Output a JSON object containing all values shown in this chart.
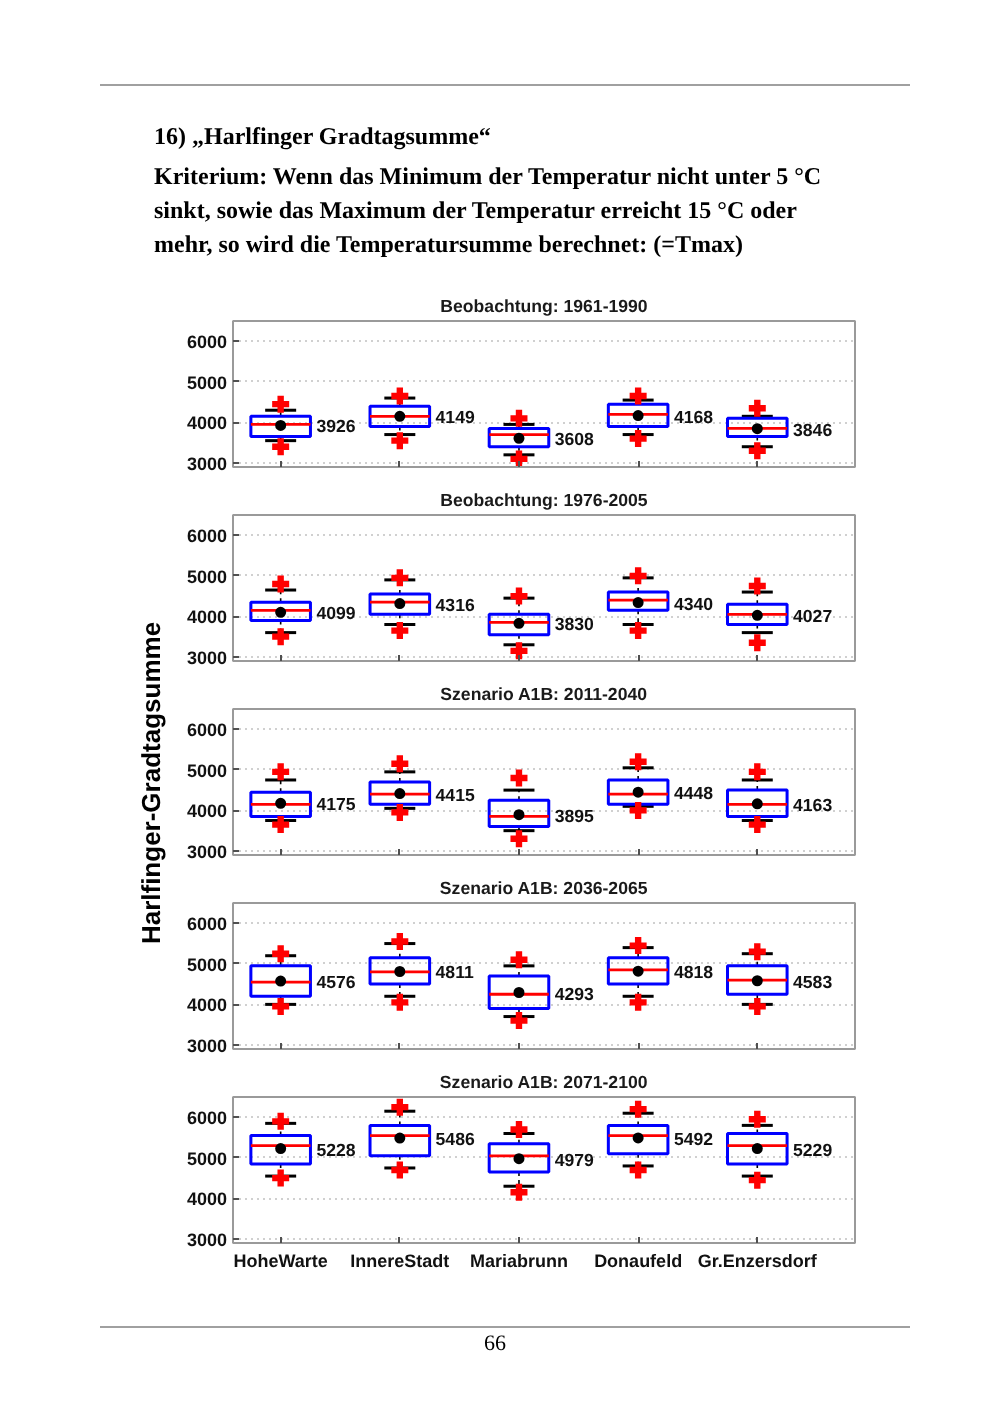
{
  "chart_data": [
    {
      "type": "other",
      "title": "16) „Harlfinger Gradtagsumme“",
      "subtitle": "Kriterium: Wenn das Minimum der Temperatur nicht unter 5 °C\nsinkt, sowie das Maximum der Temperatur erreicht 15 °C oder\nmehr, so wird die Temperatursumme berechnet: (=Tmax)",
      "annotations": [
        "66"
      ]
    },
    {
      "type": "box",
      "title": "Beobachtung: 1961-1990",
      "categories": [
        "HoheWarte",
        "InnereStadt",
        "Mariabrunn",
        "Donaufeld",
        "Gr.Enzersdorf"
      ],
      "series": [
        {
          "color": "#0000ff",
          "boxes": [
            {
              "low": 3550,
              "q1": 3650,
              "median": 3950,
              "q3": 4150,
              "high": 4300,
              "outliers": [
                4450,
                3400
              ]
            },
            {
              "low": 3700,
              "q1": 3900,
              "median": 4150,
              "q3": 4400,
              "high": 4600,
              "outliers": [
                4650,
                3550
              ]
            },
            {
              "low": 3200,
              "q1": 3400,
              "median": 3700,
              "q3": 3850,
              "high": 3950,
              "outliers": [
                4100,
                3100
              ]
            },
            {
              "low": 3700,
              "q1": 3900,
              "median": 4200,
              "q3": 4450,
              "high": 4550,
              "outliers": [
                4650,
                3600
              ]
            },
            {
              "low": 3400,
              "q1": 3650,
              "median": 3850,
              "q3": 4100,
              "high": 4150,
              "outliers": [
                4350,
                3300
              ]
            }
          ]
        },
        {
          "type": "scatter",
          "color": "#000000",
          "x": [
            "HoheWarte",
            "InnereStadt",
            "Mariabrunn",
            "Donaufeld",
            "Gr.Enzersdorf"
          ],
          "values": [
            3926,
            4149,
            3608,
            4168,
            3846
          ]
        }
      ],
      "ylim": [
        2900,
        6500
      ],
      "yticks": [
        3000,
        4000,
        5000,
        6000
      ],
      "grid": "y",
      "tick_labels": "y",
      "marker": "circle",
      "annotations": [
        {
          "text": "3926",
          "x": "HoheWarte",
          "y": 3926
        },
        {
          "text": "4149",
          "x": "InnereStadt",
          "y": 4149
        },
        {
          "text": "3608",
          "x": "Mariabrunn",
          "y": 3608
        },
        {
          "text": "4168",
          "x": "Donaufeld",
          "y": 4168
        },
        {
          "text": "3846",
          "x": "Gr.Enzersdorf",
          "y": 3846
        }
      ]
    },
    {
      "type": "box",
      "title": "Beobachtung: 1976-2005",
      "categories": [
        "HoheWarte",
        "InnereStadt",
        "Mariabrunn",
        "Donaufeld",
        "Gr.Enzersdorf"
      ],
      "series": [
        {
          "color": "#0000ff",
          "boxes": [
            {
              "low": 3600,
              "q1": 3900,
              "median": 4150,
              "q3": 4350,
              "high": 4650,
              "outliers": [
                4800,
                3500
              ]
            },
            {
              "low": 3800,
              "q1": 4050,
              "median": 4350,
              "q3": 4550,
              "high": 4900,
              "outliers": [
                4950,
                3650
              ]
            },
            {
              "low": 3300,
              "q1": 3550,
              "median": 3850,
              "q3": 4050,
              "high": 4450,
              "outliers": [
                4500,
                3150
              ]
            },
            {
              "low": 3800,
              "q1": 4150,
              "median": 4400,
              "q3": 4600,
              "high": 4950,
              "outliers": [
                5000,
                3650
              ]
            },
            {
              "low": 3600,
              "q1": 3800,
              "median": 4050,
              "q3": 4300,
              "high": 4600,
              "outliers": [
                4750,
                3350
              ]
            }
          ]
        },
        {
          "type": "scatter",
          "color": "#000000",
          "x": [
            "HoheWarte",
            "InnereStadt",
            "Mariabrunn",
            "Donaufeld",
            "Gr.Enzersdorf"
          ],
          "values": [
            4099,
            4316,
            3830,
            4340,
            4027
          ]
        }
      ],
      "ylim": [
        2900,
        6500
      ],
      "yticks": [
        3000,
        4000,
        5000,
        6000
      ],
      "grid": "y",
      "tick_labels": "y",
      "marker": "circle",
      "annotations": [
        {
          "text": "4099",
          "x": "HoheWarte",
          "y": 4099
        },
        {
          "text": "4316",
          "x": "InnereStadt",
          "y": 4316
        },
        {
          "text": "3830",
          "x": "Mariabrunn",
          "y": 3830
        },
        {
          "text": "4340",
          "x": "Donaufeld",
          "y": 4340
        },
        {
          "text": "4027",
          "x": "Gr.Enzersdorf",
          "y": 4027
        }
      ]
    },
    {
      "type": "box",
      "title": "Szenario A1B: 2011-2040",
      "ylabel": "Harlfinger-Gradtagsumme",
      "categories": [
        "HoheWarte",
        "InnereStadt",
        "Mariabrunn",
        "Donaufeld",
        "Gr.Enzersdorf"
      ],
      "series": [
        {
          "color": "#0000ff",
          "boxes": [
            {
              "low": 3750,
              "q1": 3850,
              "median": 4150,
              "q3": 4450,
              "high": 4750,
              "outliers": [
                4950,
                3650
              ]
            },
            {
              "low": 4050,
              "q1": 4150,
              "median": 4400,
              "q3": 4700,
              "high": 4950,
              "outliers": [
                5150,
                3950
              ]
            },
            {
              "low": 3500,
              "q1": 3600,
              "median": 3850,
              "q3": 4250,
              "high": 4500,
              "outliers": [
                4800,
                3300
              ]
            },
            {
              "low": 4100,
              "q1": 4150,
              "median": 4400,
              "q3": 4750,
              "high": 5050,
              "outliers": [
                5200,
                4000
              ]
            },
            {
              "low": 3750,
              "q1": 3850,
              "median": 4150,
              "q3": 4500,
              "high": 4750,
              "outliers": [
                4950,
                3650
              ]
            }
          ]
        },
        {
          "type": "scatter",
          "color": "#000000",
          "x": [
            "HoheWarte",
            "InnereStadt",
            "Mariabrunn",
            "Donaufeld",
            "Gr.Enzersdorf"
          ],
          "values": [
            4175,
            4415,
            3895,
            4448,
            4163
          ]
        }
      ],
      "ylim": [
        2900,
        6500
      ],
      "yticks": [
        3000,
        4000,
        5000,
        6000
      ],
      "grid": "y",
      "tick_labels": "y",
      "marker": "circle",
      "annotations": [
        {
          "text": "4175",
          "x": "HoheWarte",
          "y": 4175
        },
        {
          "text": "4415",
          "x": "InnereStadt",
          "y": 4415
        },
        {
          "text": "3895",
          "x": "Mariabrunn",
          "y": 3895
        },
        {
          "text": "4448",
          "x": "Donaufeld",
          "y": 4448
        },
        {
          "text": "4163",
          "x": "Gr.Enzersdorf",
          "y": 4163
        }
      ]
    },
    {
      "type": "box",
      "title": "Szenario A1B: 2036-2065",
      "categories": [
        "HoheWarte",
        "InnereStadt",
        "Mariabrunn",
        "Donaufeld",
        "Gr.Enzersdorf"
      ],
      "series": [
        {
          "color": "#0000ff",
          "boxes": [
            {
              "low": 4000,
              "q1": 4200,
              "median": 4550,
              "q3": 4950,
              "high": 5200,
              "outliers": [
                5250,
                3950
              ]
            },
            {
              "low": 4200,
              "q1": 4500,
              "median": 4800,
              "q3": 5150,
              "high": 5500,
              "outliers": [
                5550,
                4050
              ]
            },
            {
              "low": 3700,
              "q1": 3900,
              "median": 4250,
              "q3": 4700,
              "high": 4950,
              "outliers": [
                5100,
                3600
              ]
            },
            {
              "low": 4200,
              "q1": 4500,
              "median": 4850,
              "q3": 5150,
              "high": 5400,
              "outliers": [
                5450,
                4050
              ]
            },
            {
              "low": 4000,
              "q1": 4250,
              "median": 4600,
              "q3": 4950,
              "high": 5250,
              "outliers": [
                5300,
                3950
              ]
            }
          ]
        },
        {
          "type": "scatter",
          "color": "#000000",
          "x": [
            "HoheWarte",
            "InnereStadt",
            "Mariabrunn",
            "Donaufeld",
            "Gr.Enzersdorf"
          ],
          "values": [
            4576,
            4811,
            4293,
            4818,
            4583
          ]
        }
      ],
      "ylim": [
        2900,
        6500
      ],
      "yticks": [
        3000,
        4000,
        5000,
        6000
      ],
      "grid": "y",
      "tick_labels": "y",
      "marker": "circle",
      "annotations": [
        {
          "text": "4576",
          "x": "HoheWarte",
          "y": 4576
        },
        {
          "text": "4811",
          "x": "InnereStadt",
          "y": 4811
        },
        {
          "text": "4293",
          "x": "Mariabrunn",
          "y": 4293
        },
        {
          "text": "4818",
          "x": "Donaufeld",
          "y": 4818
        },
        {
          "text": "4583",
          "x": "Gr.Enzersdorf",
          "y": 4583
        }
      ]
    },
    {
      "type": "box",
      "title": "Szenario A1B: 2071-2100",
      "categories": [
        "HoheWarte",
        "InnereStadt",
        "Mariabrunn",
        "Donaufeld",
        "Gr.Enzersdorf"
      ],
      "series": [
        {
          "color": "#0000ff",
          "boxes": [
            {
              "low": 4550,
              "q1": 4850,
              "median": 5300,
              "q3": 5550,
              "high": 5850,
              "outliers": [
                5900,
                4500
              ]
            },
            {
              "low": 4750,
              "q1": 5050,
              "median": 5550,
              "q3": 5800,
              "high": 6150,
              "outliers": [
                6250,
                4700
              ]
            },
            {
              "low": 4300,
              "q1": 4650,
              "median": 5050,
              "q3": 5350,
              "high": 5600,
              "outliers": [
                5700,
                4150
              ]
            },
            {
              "low": 4800,
              "q1": 5100,
              "median": 5550,
              "q3": 5800,
              "high": 6100,
              "outliers": [
                6200,
                4700
              ]
            },
            {
              "low": 4550,
              "q1": 4850,
              "median": 5300,
              "q3": 5600,
              "high": 5800,
              "outliers": [
                5950,
                4450
              ]
            }
          ]
        },
        {
          "type": "scatter",
          "color": "#000000",
          "x": [
            "HoheWarte",
            "InnereStadt",
            "Mariabrunn",
            "Donaufeld",
            "Gr.Enzersdorf"
          ],
          "values": [
            5228,
            5486,
            4979,
            5492,
            5229
          ]
        }
      ],
      "ylim": [
        2900,
        6500
      ],
      "yticks": [
        3000,
        4000,
        5000,
        6000
      ],
      "grid": "y",
      "marker": "circle",
      "annotations": [
        {
          "text": "5228",
          "x": "HoheWarte",
          "y": 5228
        },
        {
          "text": "5486",
          "x": "InnereStadt",
          "y": 5486
        },
        {
          "text": "4979",
          "x": "Mariabrunn",
          "y": 4979
        },
        {
          "text": "5492",
          "x": "Donaufeld",
          "y": 5492
        },
        {
          "text": "5229",
          "x": "Gr.Enzersdorf",
          "y": 5229
        }
      ]
    }
  ]
}
